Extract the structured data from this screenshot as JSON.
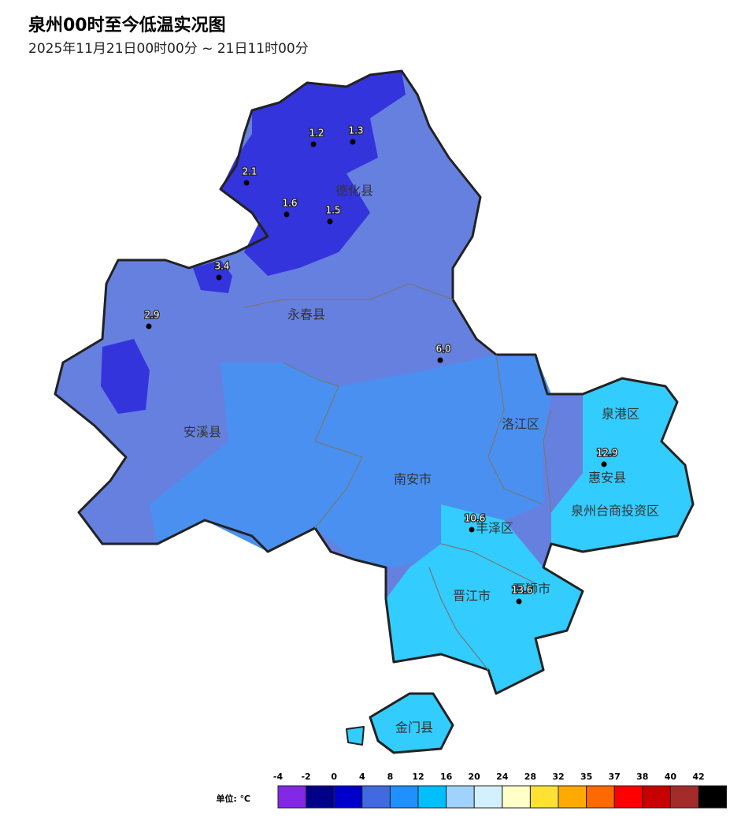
{
  "header": {
    "title": "泉州00时至今低温实况图",
    "subtitle": "2025年11月21日00时00分 ~ 21日11时00分"
  },
  "districts": [
    "德化县",
    "永春县",
    "安溪县",
    "洛江区",
    "南安市",
    "泉港区",
    "惠安县",
    "泉州台商投资区",
    "丰泽区",
    "晋江市",
    "石狮市",
    "金门县"
  ],
  "stations": [
    "1.2",
    "1.3",
    "2.1",
    "1.6",
    "1.5",
    "3.4",
    "2.9",
    "6.0",
    "12.9",
    "10.6",
    "13.6"
  ],
  "legend": {
    "unit": "单位: ℃",
    "ticks": [
      -4,
      -2,
      0,
      4,
      8,
      12,
      16,
      20,
      24,
      28,
      32,
      35,
      37,
      38,
      40,
      42
    ],
    "colors": [
      "#8228e6",
      "#00008b",
      "#0000cd",
      "#4169e1",
      "#1e90ff",
      "#00bfff",
      "#a0d2ff",
      "#d2f0ff",
      "#ffffc8",
      "#ffe132",
      "#ffaa00",
      "#ff6a00",
      "#ff0000",
      "#c80000",
      "#a52a2a",
      "#000000"
    ]
  }
}
